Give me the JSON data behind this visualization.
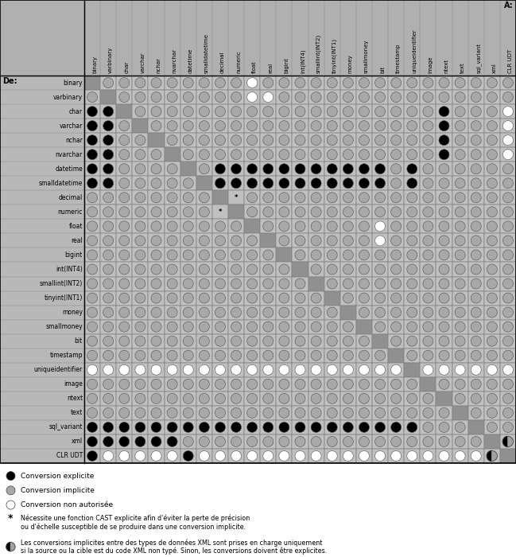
{
  "title_top": "À:",
  "title_left": "De:",
  "col_labels": [
    "binary",
    "varbinary",
    "char",
    "varchar",
    "nchar",
    "nvarchar",
    "datetime",
    "smalldatetime",
    "decimal",
    "numeric",
    "float",
    "real",
    "bigint",
    "int(INT4)",
    "smallint(INT2)",
    "tinyint(INT1)",
    "money",
    "smallmoney",
    "bit",
    "timestamp",
    "uniqueidentifier",
    "image",
    "ntext",
    "text",
    "sql_variant",
    "xml",
    "CLR UDT"
  ],
  "row_labels": [
    "binary",
    "varbinary",
    "char",
    "varchar",
    "nchar",
    "nvarchar",
    "datetime",
    "smalldatetime",
    "decimal",
    "numeric",
    "float",
    "real",
    "bigint",
    "int(INT4)",
    "smallint(INT2)",
    "tinyint(INT1)",
    "money",
    "smallmoney",
    "bit",
    "timestamp",
    "uniqueidentifier",
    "image",
    "ntext",
    "text",
    "sql_variant",
    "xml",
    "CLR UDT"
  ],
  "cells": [
    [
      " ",
      "G",
      "G",
      "G",
      "G",
      "G",
      "G",
      "G",
      "G",
      "G",
      "W",
      "G",
      "G",
      "G",
      "G",
      "G",
      "G",
      "G",
      "G",
      "G",
      "G",
      "G",
      "G",
      "G",
      "G",
      "G",
      "G"
    ],
    [
      "G",
      " ",
      "G",
      "G",
      "G",
      "G",
      "G",
      "G",
      "G",
      "G",
      "W",
      "W",
      "G",
      "G",
      "G",
      "G",
      "G",
      "G",
      "G",
      "G",
      "G",
      "G",
      "G",
      "G",
      "G",
      "G",
      "G"
    ],
    [
      "B",
      "B",
      " ",
      "G",
      "G",
      "G",
      "G",
      "G",
      "G",
      "G",
      "G",
      "G",
      "G",
      "G",
      "G",
      "G",
      "G",
      "G",
      "G",
      "G",
      "G",
      "G",
      "B",
      "G",
      "G",
      "G",
      "W"
    ],
    [
      "B",
      "B",
      "G",
      " ",
      "G",
      "G",
      "G",
      "G",
      "G",
      "G",
      "G",
      "G",
      "G",
      "G",
      "G",
      "G",
      "G",
      "G",
      "G",
      "G",
      "G",
      "G",
      "B",
      "G",
      "G",
      "G",
      "W"
    ],
    [
      "B",
      "B",
      "G",
      "G",
      " ",
      "G",
      "G",
      "G",
      "G",
      "G",
      "G",
      "G",
      "G",
      "G",
      "G",
      "G",
      "G",
      "G",
      "G",
      "G",
      "G",
      "G",
      "B",
      "G",
      "G",
      "G",
      "W"
    ],
    [
      "B",
      "B",
      "G",
      "G",
      "G",
      " ",
      "G",
      "G",
      "G",
      "G",
      "G",
      "G",
      "G",
      "G",
      "G",
      "G",
      "G",
      "G",
      "G",
      "G",
      "G",
      "G",
      "B",
      "G",
      "G",
      "G",
      "W"
    ],
    [
      "B",
      "B",
      "G",
      "G",
      "G",
      "G",
      " ",
      "G",
      "B",
      "B",
      "B",
      "B",
      "B",
      "B",
      "B",
      "B",
      "B",
      "B",
      "B",
      "G",
      "B",
      "G",
      "G",
      "G",
      "G",
      "G",
      "G"
    ],
    [
      "B",
      "B",
      "G",
      "G",
      "G",
      "G",
      "G",
      " ",
      "B",
      "B",
      "B",
      "B",
      "B",
      "B",
      "B",
      "B",
      "B",
      "B",
      "B",
      "G",
      "B",
      "G",
      "G",
      "G",
      "G",
      "G",
      "G"
    ],
    [
      "G",
      "G",
      "G",
      "G",
      "G",
      "G",
      "G",
      "G",
      " ",
      "*",
      "G",
      "G",
      "G",
      "G",
      "G",
      "G",
      "G",
      "G",
      "G",
      "G",
      "G",
      "G",
      "G",
      "G",
      "G",
      "G",
      "G"
    ],
    [
      "G",
      "G",
      "G",
      "G",
      "G",
      "G",
      "G",
      "G",
      "*",
      " ",
      "G",
      "G",
      "G",
      "G",
      "G",
      "G",
      "G",
      "G",
      "G",
      "G",
      "G",
      "G",
      "G",
      "G",
      "G",
      "G",
      "G"
    ],
    [
      "G",
      "G",
      "G",
      "G",
      "G",
      "G",
      "G",
      "G",
      "G",
      "G",
      " ",
      "G",
      "G",
      "G",
      "G",
      "G",
      "G",
      "G",
      "W",
      "G",
      "G",
      "G",
      "G",
      "G",
      "G",
      "G",
      "G"
    ],
    [
      "G",
      "G",
      "G",
      "G",
      "G",
      "G",
      "G",
      "G",
      "G",
      "G",
      "G",
      " ",
      "G",
      "G",
      "G",
      "G",
      "G",
      "G",
      "W",
      "G",
      "G",
      "G",
      "G",
      "G",
      "G",
      "G",
      "G"
    ],
    [
      "G",
      "G",
      "G",
      "G",
      "G",
      "G",
      "G",
      "G",
      "G",
      "G",
      "G",
      "G",
      " ",
      "G",
      "G",
      "G",
      "G",
      "G",
      "G",
      "G",
      "G",
      "G",
      "G",
      "G",
      "G",
      "G",
      "G"
    ],
    [
      "G",
      "G",
      "G",
      "G",
      "G",
      "G",
      "G",
      "G",
      "G",
      "G",
      "G",
      "G",
      "G",
      " ",
      "G",
      "G",
      "G",
      "G",
      "G",
      "G",
      "G",
      "G",
      "G",
      "G",
      "G",
      "G",
      "G"
    ],
    [
      "G",
      "G",
      "G",
      "G",
      "G",
      "G",
      "G",
      "G",
      "G",
      "G",
      "G",
      "G",
      "G",
      "G",
      " ",
      "G",
      "G",
      "G",
      "G",
      "G",
      "G",
      "G",
      "G",
      "G",
      "G",
      "G",
      "G"
    ],
    [
      "G",
      "G",
      "G",
      "G",
      "G",
      "G",
      "G",
      "G",
      "G",
      "G",
      "G",
      "G",
      "G",
      "G",
      "G",
      " ",
      "G",
      "G",
      "G",
      "G",
      "G",
      "G",
      "G",
      "G",
      "G",
      "G",
      "G"
    ],
    [
      "G",
      "G",
      "G",
      "G",
      "G",
      "G",
      "G",
      "G",
      "G",
      "G",
      "G",
      "G",
      "G",
      "G",
      "G",
      "G",
      " ",
      "G",
      "G",
      "G",
      "G",
      "G",
      "G",
      "G",
      "G",
      "G",
      "G"
    ],
    [
      "G",
      "G",
      "G",
      "G",
      "G",
      "G",
      "G",
      "G",
      "G",
      "G",
      "G",
      "G",
      "G",
      "G",
      "G",
      "G",
      "G",
      " ",
      "G",
      "G",
      "G",
      "G",
      "G",
      "G",
      "G",
      "G",
      "G"
    ],
    [
      "G",
      "G",
      "G",
      "G",
      "G",
      "G",
      "G",
      "G",
      "G",
      "G",
      "G",
      "G",
      "G",
      "G",
      "G",
      "G",
      "G",
      "G",
      " ",
      "G",
      "G",
      "G",
      "G",
      "G",
      "G",
      "G",
      "G"
    ],
    [
      "G",
      "G",
      "G",
      "G",
      "G",
      "G",
      "G",
      "G",
      "G",
      "G",
      "G",
      "G",
      "G",
      "G",
      "G",
      "G",
      "G",
      "G",
      "G",
      " ",
      "G",
      "G",
      "G",
      "G",
      "G",
      "G",
      "G"
    ],
    [
      "W",
      "W",
      "W",
      "W",
      "W",
      "W",
      "W",
      "W",
      "W",
      "W",
      "W",
      "W",
      "W",
      "W",
      "W",
      "W",
      "W",
      "W",
      "W",
      "W",
      " ",
      "W",
      "W",
      "W",
      "W",
      "W",
      "W"
    ],
    [
      "G",
      "G",
      "G",
      "G",
      "G",
      "G",
      "G",
      "G",
      "G",
      "G",
      "G",
      "G",
      "G",
      "G",
      "G",
      "G",
      "G",
      "G",
      "G",
      "G",
      "G",
      " ",
      "G",
      "G",
      "G",
      "G",
      "G"
    ],
    [
      "G",
      "G",
      "G",
      "G",
      "G",
      "G",
      "G",
      "G",
      "G",
      "G",
      "G",
      "G",
      "G",
      "G",
      "G",
      "G",
      "G",
      "G",
      "G",
      "G",
      "G",
      "G",
      " ",
      "G",
      "G",
      "G",
      "G"
    ],
    [
      "G",
      "G",
      "G",
      "G",
      "G",
      "G",
      "G",
      "G",
      "G",
      "G",
      "G",
      "G",
      "G",
      "G",
      "G",
      "G",
      "G",
      "G",
      "G",
      "G",
      "G",
      "G",
      "G",
      " ",
      "G",
      "G",
      "G"
    ],
    [
      "B",
      "B",
      "B",
      "B",
      "B",
      "B",
      "B",
      "B",
      "B",
      "B",
      "B",
      "B",
      "B",
      "B",
      "B",
      "B",
      "B",
      "B",
      "B",
      "B",
      "B",
      "G",
      "G",
      "G",
      " ",
      "G",
      "G"
    ],
    [
      "B",
      "B",
      "B",
      "B",
      "B",
      "B",
      "G",
      "G",
      "G",
      "G",
      "G",
      "G",
      "G",
      "G",
      "G",
      "G",
      "G",
      "G",
      "G",
      "G",
      "G",
      "G",
      "G",
      "G",
      "G",
      " ",
      "X"
    ],
    [
      "B",
      "W",
      "W",
      "W",
      "W",
      "W",
      "B",
      "W",
      "W",
      "W",
      "W",
      "W",
      "W",
      "W",
      "W",
      "W",
      "W",
      "W",
      "W",
      "W",
      "W",
      "W",
      "W",
      "W",
      "W",
      "X",
      " "
    ]
  ],
  "cell_bg": "#c0c0c0",
  "diag_bg": "#909090",
  "header_bg": "#909090",
  "row_label_bg": "#d0d0d0",
  "border_color": "#000000",
  "grid_color": "#808080",
  "circle_gray": "#a0a0a0",
  "circle_edge": "#505050"
}
